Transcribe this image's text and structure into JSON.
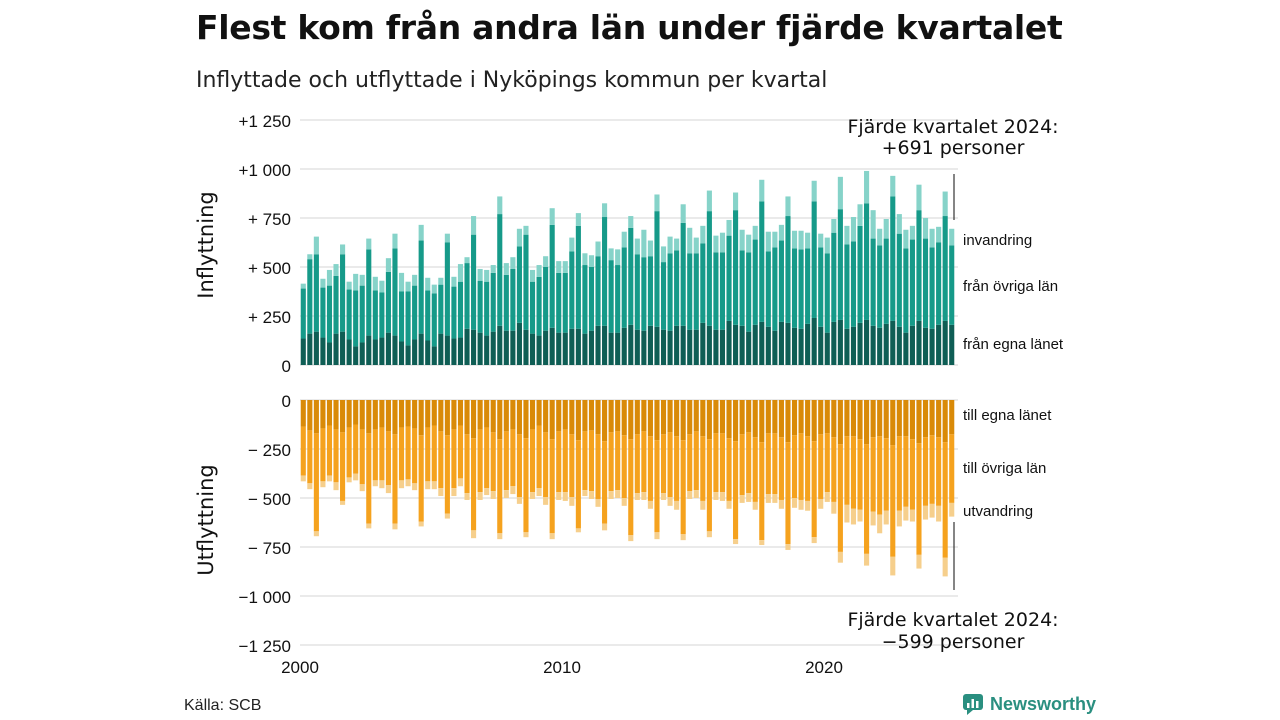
{
  "title": "Flest kom från andra län under fjärde kvartalet",
  "subtitle": "Inflyttade och utflyttade i Nyköpings kommun per kvartal",
  "source": "Källa: SCB",
  "brand": "Newsworthy",
  "brand_icon": "chart-speech-bubble-icon",
  "colors": {
    "in_egna": "#0f5e55",
    "in_ovriga": "#169a89",
    "in_invandring": "#86d3c9",
    "ut_egna": "#d98a08",
    "ut_ovriga": "#f5a21e",
    "ut_utvandring": "#f6cf8c",
    "grid": "#dddddd",
    "brand": "#2a8f80"
  },
  "chart_data": {
    "type": "bar",
    "stacked": true,
    "x_start": "2000 Q1",
    "x_end": "2024 Q4",
    "x_ticks": [
      "2000",
      "2010",
      "2020"
    ],
    "ylim": [
      -1250,
      1250
    ],
    "y_ticks": [
      "+1 250",
      "+1 000",
      "+ 750",
      "+ 500",
      "+ 250",
      "0",
      "− 250",
      "− 500",
      "− 750",
      "−1 000",
      "−1 250"
    ],
    "ylabel_top": "Inflyttning",
    "ylabel_bottom": "Utflyttning",
    "in_series": [
      {
        "name": "från egna länet",
        "values": [
          135,
          160,
          170,
          140,
          115,
          160,
          170,
          130,
          95,
          115,
          150,
          130,
          140,
          165,
          150,
          120,
          100,
          130,
          160,
          125,
          95,
          160,
          150,
          135,
          140,
          185,
          180,
          165,
          150,
          170,
          200,
          175,
          175,
          215,
          180,
          160,
          150,
          175,
          190,
          165,
          165,
          185,
          185,
          160,
          175,
          200,
          200,
          165,
          165,
          190,
          205,
          180,
          175,
          200,
          195,
          180,
          175,
          200,
          200,
          180,
          180,
          215,
          200,
          180,
          180,
          225,
          205,
          200,
          170,
          205,
          220,
          195,
          175,
          220,
          215,
          190,
          185,
          210,
          240,
          195,
          165,
          220,
          230,
          185,
          195,
          215,
          230,
          200,
          190,
          210,
          225,
          195,
          165,
          200,
          225,
          190,
          185,
          205,
          225,
          205
        ]
      },
      {
        "name": "från övriga län",
        "values": [
          255,
          380,
          395,
          255,
          290,
          295,
          395,
          255,
          285,
          290,
          440,
          250,
          230,
          310,
          445,
          255,
          275,
          275,
          475,
          255,
          270,
          250,
          475,
          265,
          285,
          335,
          485,
          265,
          275,
          300,
          570,
          285,
          315,
          390,
          485,
          265,
          300,
          325,
          525,
          305,
          305,
          395,
          525,
          350,
          325,
          355,
          555,
          370,
          345,
          410,
          495,
          385,
          375,
          355,
          590,
          345,
          395,
          385,
          525,
          390,
          390,
          405,
          585,
          395,
          395,
          435,
          585,
          385,
          405,
          435,
          615,
          385,
          425,
          415,
          545,
          405,
          405,
          385,
          595,
          405,
          405,
          455,
          565,
          430,
          435,
          495,
          595,
          445,
          420,
          435,
          635,
          475,
          430,
          440,
          565,
          455,
          415,
          420,
          535,
          405
        ]
      },
      {
        "name": "invandring",
        "values": [
          25,
          25,
          90,
          45,
          80,
          60,
          50,
          40,
          85,
          55,
          55,
          70,
          60,
          70,
          75,
          95,
          50,
          55,
          80,
          65,
          45,
          35,
          45,
          50,
          90,
          30,
          95,
          60,
          60,
          40,
          90,
          60,
          60,
          90,
          45,
          60,
          60,
          55,
          85,
          60,
          60,
          70,
          65,
          60,
          60,
          75,
          70,
          60,
          80,
          80,
          60,
          80,
          140,
          80,
          85,
          80,
          85,
          60,
          95,
          130,
          80,
          90,
          105,
          85,
          100,
          80,
          90,
          105,
          90,
          70,
          110,
          100,
          80,
          80,
          100,
          90,
          95,
          80,
          105,
          70,
          80,
          70,
          165,
          95,
          125,
          110,
          165,
          145,
          85,
          100,
          105,
          100,
          95,
          70,
          130,
          105,
          95,
          80,
          125,
          85
        ]
      }
    ],
    "out_series": [
      {
        "name": "till egna länet",
        "values": [
          -135,
          -155,
          -170,
          -145,
          -130,
          -150,
          -165,
          -140,
          -125,
          -150,
          -170,
          -150,
          -140,
          -160,
          -175,
          -140,
          -135,
          -145,
          -180,
          -140,
          -130,
          -160,
          -180,
          -150,
          -130,
          -175,
          -195,
          -150,
          -140,
          -165,
          -200,
          -160,
          -150,
          -175,
          -195,
          -150,
          -130,
          -165,
          -200,
          -160,
          -150,
          -175,
          -205,
          -160,
          -155,
          -175,
          -210,
          -165,
          -160,
          -180,
          -200,
          -175,
          -160,
          -185,
          -205,
          -175,
          -165,
          -185,
          -205,
          -175,
          -160,
          -185,
          -200,
          -170,
          -170,
          -195,
          -210,
          -175,
          -165,
          -190,
          -215,
          -170,
          -170,
          -190,
          -215,
          -180,
          -170,
          -185,
          -210,
          -175,
          -170,
          -190,
          -225,
          -185,
          -185,
          -200,
          -225,
          -190,
          -185,
          -195,
          -230,
          -185,
          -185,
          -200,
          -220,
          -190,
          -180,
          -190,
          -215,
          -175
        ]
      },
      {
        "name": "till övriga län",
        "values": [
          -250,
          -270,
          -500,
          -270,
          -255,
          -270,
          -350,
          -255,
          -250,
          -280,
          -460,
          -260,
          -270,
          -275,
          -455,
          -270,
          -270,
          -280,
          -440,
          -275,
          -285,
          -290,
          -400,
          -300,
          -270,
          -300,
          -470,
          -320,
          -310,
          -300,
          -480,
          -300,
          -290,
          -320,
          -480,
          -320,
          -320,
          -330,
          -480,
          -310,
          -320,
          -320,
          -450,
          -300,
          -310,
          -330,
          -420,
          -300,
          -300,
          -320,
          -490,
          -300,
          -310,
          -330,
          -470,
          -300,
          -330,
          -330,
          -480,
          -290,
          -300,
          -330,
          -470,
          -300,
          -300,
          -320,
          -500,
          -310,
          -310,
          -330,
          -500,
          -310,
          -310,
          -320,
          -520,
          -320,
          -340,
          -330,
          -490,
          -330,
          -300,
          -330,
          -550,
          -350,
          -370,
          -360,
          -560,
          -380,
          -400,
          -370,
          -570,
          -380,
          -360,
          -360,
          -570,
          -350,
          -350,
          -350,
          -590,
          -350
        ]
      },
      {
        "name": "utvandring",
        "values": [
          -30,
          -30,
          -25,
          -30,
          -30,
          -40,
          -20,
          -25,
          -35,
          -35,
          -25,
          -30,
          -40,
          -40,
          -30,
          -40,
          -35,
          -35,
          -25,
          -40,
          -40,
          -40,
          -25,
          -40,
          -40,
          -35,
          -40,
          -40,
          -35,
          -40,
          -30,
          -40,
          -40,
          -35,
          -25,
          -35,
          -40,
          -40,
          -30,
          -40,
          -45,
          -45,
          -20,
          -30,
          -40,
          -40,
          -35,
          -40,
          -40,
          -40,
          -30,
          -35,
          -40,
          -40,
          -35,
          -35,
          -45,
          -45,
          -30,
          -40,
          -40,
          -45,
          -30,
          -40,
          -45,
          -40,
          -25,
          -40,
          -45,
          -40,
          -25,
          -45,
          -45,
          -45,
          -30,
          -50,
          -50,
          -50,
          -30,
          -50,
          -50,
          -60,
          -55,
          -90,
          -80,
          -60,
          -60,
          -70,
          -95,
          -70,
          -95,
          -80,
          -70,
          -60,
          -70,
          -70,
          -70,
          -80,
          -95,
          -70
        ]
      }
    ],
    "annotations": {
      "top_line1": "Fjärde kvartalet 2024:",
      "top_line2": "+691 personer",
      "bottom_line1": "Fjärde kvartalet 2024:",
      "bottom_line2": "−599 personer"
    }
  }
}
